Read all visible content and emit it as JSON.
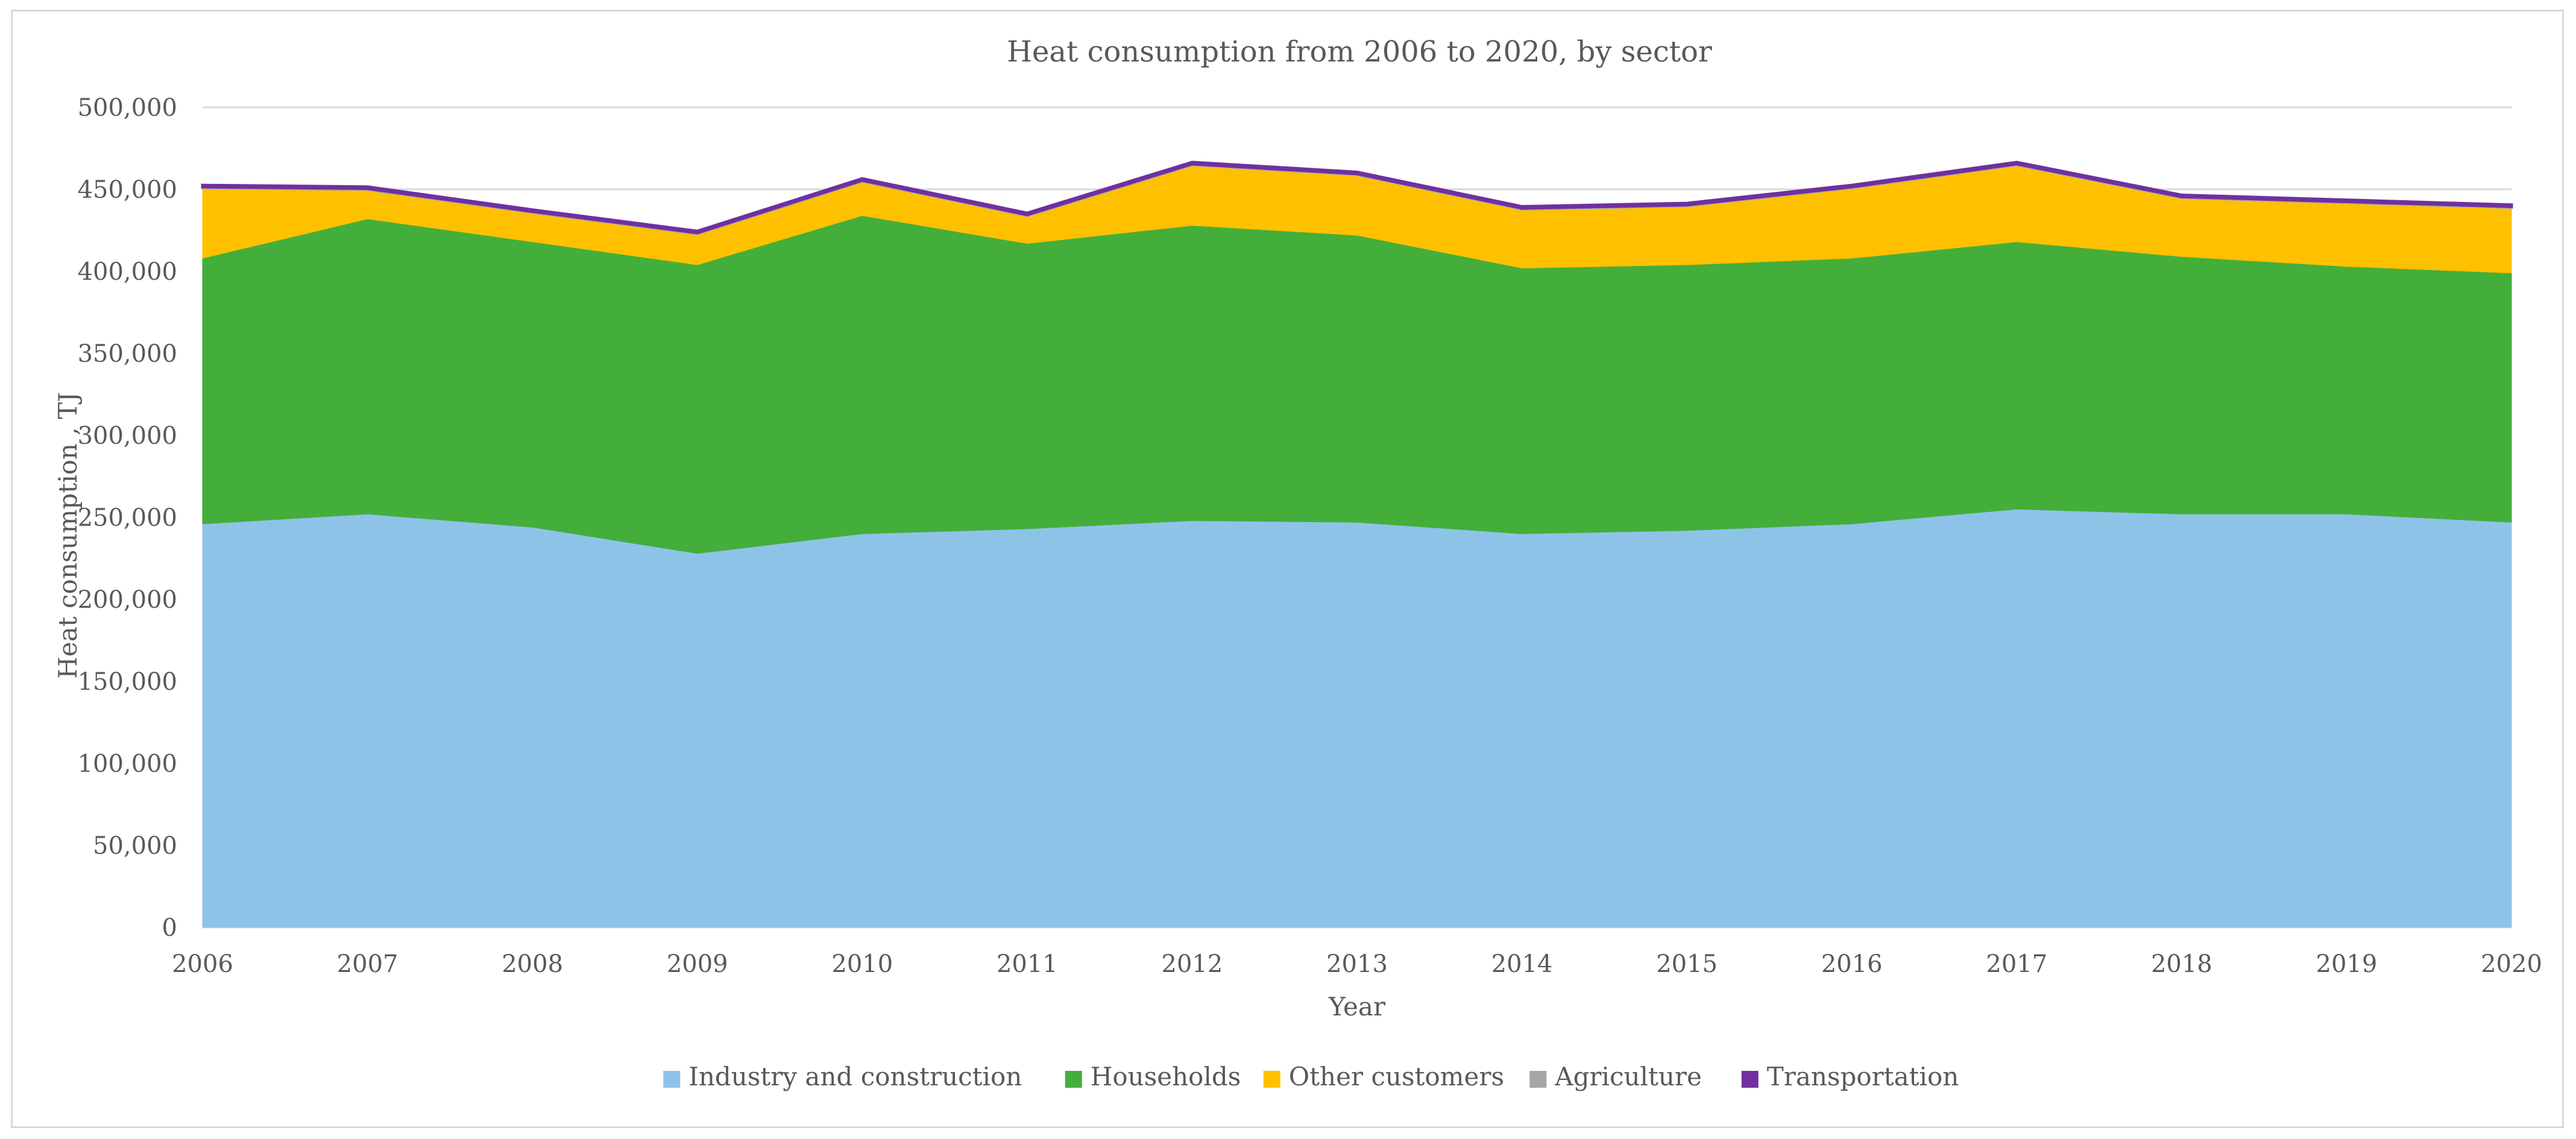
{
  "chart_data": {
    "type": "area",
    "stacked": true,
    "title": "Heat consumption from 2006 to 2020, by sector",
    "xlabel": "Year",
    "ylabel": "Heat consumption , TJ",
    "ylim": [
      0,
      500000
    ],
    "y_tick_step": 50000,
    "y_tick_labels": [
      "0",
      "50,000",
      "100,000",
      "150,000",
      "200,000",
      "250,000",
      "300,000",
      "350,000",
      "400,000",
      "450,000",
      "500,000"
    ],
    "categories": [
      "2006",
      "2007",
      "2008",
      "2009",
      "2010",
      "2011",
      "2012",
      "2013",
      "2014",
      "2015",
      "2016",
      "2017",
      "2018",
      "2019",
      "2020"
    ],
    "grid": true,
    "legend_position": "bottom",
    "series": [
      {
        "name": "Industry and construction",
        "color": "#8ec3e8",
        "values": [
          246000,
          252000,
          244000,
          228000,
          240000,
          243000,
          248000,
          247000,
          240000,
          242000,
          246000,
          255000,
          252000,
          252000,
          247000
        ]
      },
      {
        "name": "Households",
        "color": "#44ae3a",
        "values": [
          162000,
          180000,
          174000,
          176000,
          194000,
          174000,
          180000,
          175000,
          162000,
          162000,
          162000,
          163000,
          157000,
          151000,
          152000
        ]
      },
      {
        "name": "Other customers",
        "color": "#ffc000",
        "values": [
          43000,
          18000,
          18000,
          19000,
          21000,
          17000,
          37000,
          37000,
          36000,
          36000,
          43000,
          47000,
          36000,
          39000,
          40000
        ]
      },
      {
        "name": "Agriculture",
        "color": "#a5a5a5",
        "values": [
          500,
          500,
          500,
          500,
          500,
          500,
          500,
          500,
          500,
          500,
          500,
          500,
          500,
          500,
          500
        ]
      },
      {
        "name": "Transportation",
        "color": "#7030a0",
        "values": [
          1000,
          1000,
          1000,
          1000,
          1000,
          1000,
          1000,
          1000,
          1000,
          1000,
          1000,
          1000,
          1000,
          1000,
          1000
        ]
      }
    ]
  }
}
